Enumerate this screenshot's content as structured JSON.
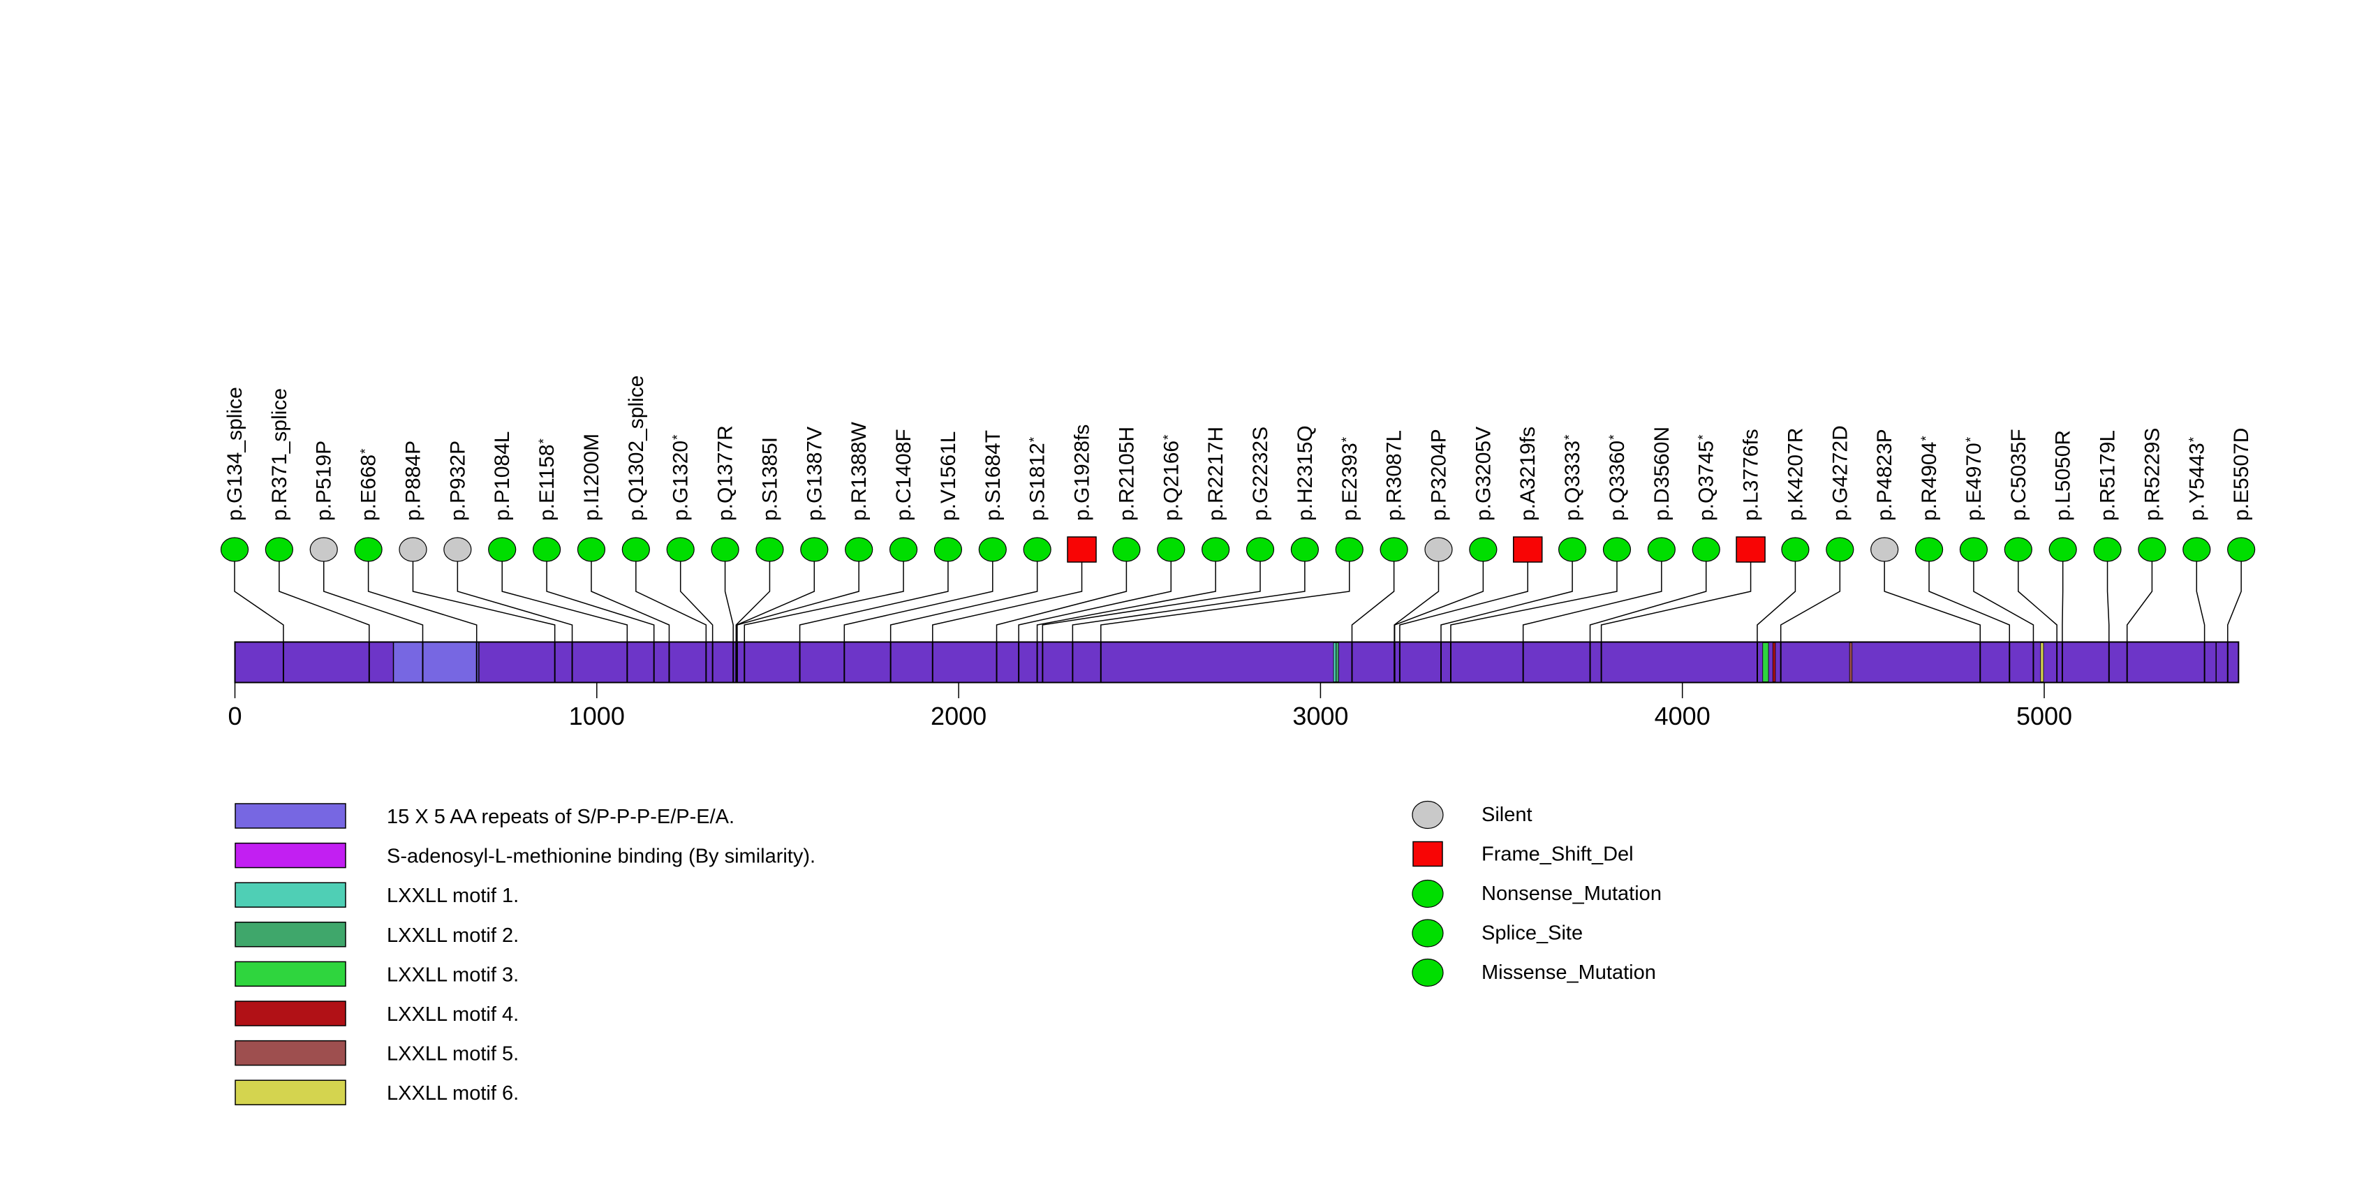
{
  "figure": {
    "background": "#FFFFFF"
  },
  "chart_data": {
    "type": "lollipop",
    "protein": {
      "length_aa": 5537,
      "axis_ticks": [
        0,
        1000,
        2000,
        3000,
        4000,
        5000
      ]
    },
    "track_color": "#6D35C8",
    "track_border_color": "#000000",
    "domains": [
      {
        "label": "15 X 5 AA repeats of S/P-P-P-E/P-E/A.",
        "start": 438,
        "end": 674,
        "color": "#7767E2"
      }
    ],
    "motif_marks": [
      {
        "label": "LXXLL motif 1.",
        "start": 3036,
        "end": 3043,
        "color": "#4FCFB5"
      },
      {
        "label": "LXXLL motif 2.",
        "start": 3043,
        "end": 3050,
        "color": "#3FA76B"
      },
      {
        "label": "LXXLL motif 3.",
        "start": 4222,
        "end": 4238,
        "color": "#2FD53E"
      },
      {
        "label": "LXXLL motif 4.",
        "start": 4250,
        "end": 4257,
        "color": "#B11116"
      },
      {
        "label": "LXXLL motif 5.",
        "start": 4462,
        "end": 4469,
        "color": "#9E4F4F"
      },
      {
        "label": "LXXLL motif 6.",
        "start": 4990,
        "end": 4998,
        "color": "#D4D44F"
      }
    ],
    "boundary_lines": [
      5475
    ],
    "mutation_styles": {
      "Silent": {
        "shape": "circle",
        "color": "#C9C9C9"
      },
      "Frame_Shift_Del": {
        "shape": "square",
        "color": "#F80505"
      },
      "Nonsense_Mutation": {
        "shape": "circle",
        "color": "#00DE00"
      },
      "Splice_Site": {
        "shape": "circle",
        "color": "#00DE00"
      },
      "Missense_Mutation": {
        "shape": "circle",
        "color": "#00DE00"
      }
    },
    "mutations": [
      {
        "label": "p.G134_splice",
        "pos": 134,
        "type": "Splice_Site"
      },
      {
        "label": "p.R371_splice",
        "pos": 371,
        "type": "Splice_Site"
      },
      {
        "label": "p.P519P",
        "pos": 519,
        "type": "Silent"
      },
      {
        "label": "p.E668*",
        "pos": 668,
        "type": "Nonsense_Mutation"
      },
      {
        "label": "p.P884P",
        "pos": 884,
        "type": "Silent"
      },
      {
        "label": "p.P932P",
        "pos": 932,
        "type": "Silent"
      },
      {
        "label": "p.P1084L",
        "pos": 1084,
        "type": "Missense_Mutation"
      },
      {
        "label": "p.E1158*",
        "pos": 1158,
        "type": "Nonsense_Mutation"
      },
      {
        "label": "p.I1200M",
        "pos": 1200,
        "type": "Missense_Mutation"
      },
      {
        "label": "p.Q1302_splice",
        "pos": 1302,
        "type": "Splice_Site"
      },
      {
        "label": "p.G1320*",
        "pos": 1320,
        "type": "Nonsense_Mutation"
      },
      {
        "label": "p.Q1377R",
        "pos": 1377,
        "type": "Missense_Mutation"
      },
      {
        "label": "p.S1385I",
        "pos": 1385,
        "type": "Missense_Mutation"
      },
      {
        "label": "p.G1387V",
        "pos": 1387,
        "type": "Missense_Mutation"
      },
      {
        "label": "p.R1388W",
        "pos": 1388,
        "type": "Missense_Mutation"
      },
      {
        "label": "p.C1408F",
        "pos": 1408,
        "type": "Missense_Mutation"
      },
      {
        "label": "p.V1561L",
        "pos": 1561,
        "type": "Missense_Mutation"
      },
      {
        "label": "p.S1684T",
        "pos": 1684,
        "type": "Missense_Mutation"
      },
      {
        "label": "p.S1812*",
        "pos": 1812,
        "type": "Nonsense_Mutation"
      },
      {
        "label": "p.G1928fs",
        "pos": 1928,
        "type": "Frame_Shift_Del"
      },
      {
        "label": "p.R2105H",
        "pos": 2105,
        "type": "Missense_Mutation"
      },
      {
        "label": "p.Q2166*",
        "pos": 2166,
        "type": "Nonsense_Mutation"
      },
      {
        "label": "p.R2217H",
        "pos": 2217,
        "type": "Missense_Mutation"
      },
      {
        "label": "p.G2232S",
        "pos": 2232,
        "type": "Missense_Mutation"
      },
      {
        "label": "p.H2315Q",
        "pos": 2315,
        "type": "Missense_Mutation"
      },
      {
        "label": "p.E2393*",
        "pos": 2393,
        "type": "Nonsense_Mutation"
      },
      {
        "label": "p.R3087L",
        "pos": 3087,
        "type": "Missense_Mutation"
      },
      {
        "label": "p.P3204P",
        "pos": 3204,
        "type": "Silent"
      },
      {
        "label": "p.G3205V",
        "pos": 3205,
        "type": "Missense_Mutation"
      },
      {
        "label": "p.A3219fs",
        "pos": 3219,
        "type": "Frame_Shift_Del"
      },
      {
        "label": "p.Q3333*",
        "pos": 3333,
        "type": "Nonsense_Mutation"
      },
      {
        "label": "p.Q3360*",
        "pos": 3360,
        "type": "Nonsense_Mutation"
      },
      {
        "label": "p.D3560N",
        "pos": 3560,
        "type": "Missense_Mutation"
      },
      {
        "label": "p.Q3745*",
        "pos": 3745,
        "type": "Nonsense_Mutation"
      },
      {
        "label": "p.L3776fs",
        "pos": 3776,
        "type": "Frame_Shift_Del"
      },
      {
        "label": "p.K4207R",
        "pos": 4207,
        "type": "Missense_Mutation"
      },
      {
        "label": "p.G4272D",
        "pos": 4272,
        "type": "Missense_Mutation"
      },
      {
        "label": "p.P4823P",
        "pos": 4823,
        "type": "Silent"
      },
      {
        "label": "p.R4904*",
        "pos": 4904,
        "type": "Nonsense_Mutation"
      },
      {
        "label": "p.E4970*",
        "pos": 4970,
        "type": "Nonsense_Mutation"
      },
      {
        "label": "p.C5035F",
        "pos": 5035,
        "type": "Missense_Mutation"
      },
      {
        "label": "p.L5050R",
        "pos": 5050,
        "type": "Missense_Mutation"
      },
      {
        "label": "p.R5179L",
        "pos": 5179,
        "type": "Missense_Mutation"
      },
      {
        "label": "p.R5229S",
        "pos": 5229,
        "type": "Missense_Mutation"
      },
      {
        "label": "p.Y5443*",
        "pos": 5443,
        "type": "Nonsense_Mutation"
      },
      {
        "label": "p.E5507D",
        "pos": 5507,
        "type": "Missense_Mutation"
      }
    ],
    "legend_left": [
      {
        "label": "15 X 5 AA repeats of S/P-P-P-E/P-E/A.",
        "color": "#7767E2"
      },
      {
        "label": "S-adenosyl-L-methionine binding (By similarity).",
        "color": "#C21FF2"
      },
      {
        "label": "LXXLL motif 1.",
        "color": "#4FCFB5"
      },
      {
        "label": "LXXLL motif 2.",
        "color": "#3FA76B"
      },
      {
        "label": "LXXLL motif 3.",
        "color": "#2FD53E"
      },
      {
        "label": "LXXLL motif 4.",
        "color": "#B11116"
      },
      {
        "label": "LXXLL motif 5.",
        "color": "#9E4F4F"
      },
      {
        "label": "LXXLL motif 6.",
        "color": "#D4D44F"
      }
    ],
    "legend_right": [
      {
        "label": "Silent",
        "shape": "circle",
        "color": "#C9C9C9"
      },
      {
        "label": "Frame_Shift_Del",
        "shape": "square",
        "color": "#F80505"
      },
      {
        "label": "Nonsense_Mutation",
        "shape": "circle",
        "color": "#00DE00"
      },
      {
        "label": "Splice_Site",
        "shape": "circle",
        "color": "#00DE00"
      },
      {
        "label": "Missense_Mutation",
        "shape": "circle",
        "color": "#00DE00"
      }
    ]
  }
}
